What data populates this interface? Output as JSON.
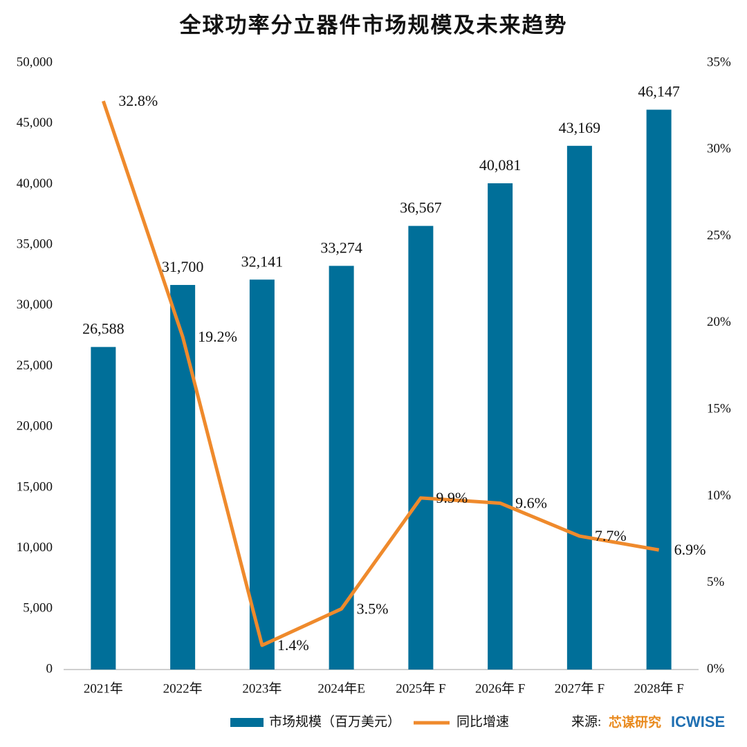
{
  "chart_data": {
    "type": "bar-line",
    "title": "全球功率分立器件市场规模及未来趋势",
    "categories": [
      "2021年",
      "2022年",
      "2023年",
      "2024年E",
      "2025年 F",
      "2026年 F",
      "2027年 F",
      "2028年 F"
    ],
    "series": [
      {
        "name": "市场规模（百万美元）",
        "type": "bar",
        "color": "#006f99",
        "values": [
          26588,
          31700,
          32141,
          33274,
          36567,
          40081,
          43169,
          46147
        ],
        "value_labels": [
          "26,588",
          "31,700",
          "32,141",
          "33,274",
          "36,567",
          "40,081",
          "43,169",
          "46,147"
        ]
      },
      {
        "name": "同比增速",
        "type": "line",
        "axis": "y2",
        "color": "#ef8a2c",
        "values": [
          32.8,
          19.2,
          1.4,
          3.5,
          9.9,
          9.6,
          7.7,
          6.9
        ],
        "value_labels": [
          "32.8%",
          "19.2%",
          "1.4%",
          "3.5%",
          "9.9%",
          "9.6%",
          "7.7%",
          "6.9%"
        ]
      }
    ],
    "ylim": [
      0,
      50000
    ],
    "yticks": [
      0,
      {
        "value": 5000,
        "label": "5,000"
      },
      {
        "value": 10000,
        "label": "10,000"
      },
      {
        "value": 15000,
        "label": "15,000"
      },
      {
        "value": 20000,
        "label": "20,000"
      },
      {
        "value": 25000,
        "label": "25,000"
      },
      {
        "value": 30000,
        "label": "30,000"
      },
      {
        "value": 35000,
        "label": "35,000"
      },
      {
        "value": 40000,
        "label": "40,000"
      },
      {
        "value": 45000,
        "label": "45,000"
      },
      {
        "value": 50000,
        "label": "50,000"
      }
    ],
    "y2lim": [
      0,
      35
    ],
    "y2ticks": [
      {
        "value": 0,
        "label": "0%"
      },
      {
        "value": 5,
        "label": "5%"
      },
      {
        "value": 10,
        "label": "10%"
      },
      {
        "value": 15,
        "label": "15%"
      },
      {
        "value": 20,
        "label": "20%"
      },
      {
        "value": 25,
        "label": "25%"
      },
      {
        "value": 30,
        "label": "30%"
      },
      {
        "value": 35,
        "label": "35%"
      }
    ],
    "grid": false,
    "source": {
      "label": "来源:",
      "brand": "芯谋研究",
      "logo": "ICWISE"
    }
  }
}
